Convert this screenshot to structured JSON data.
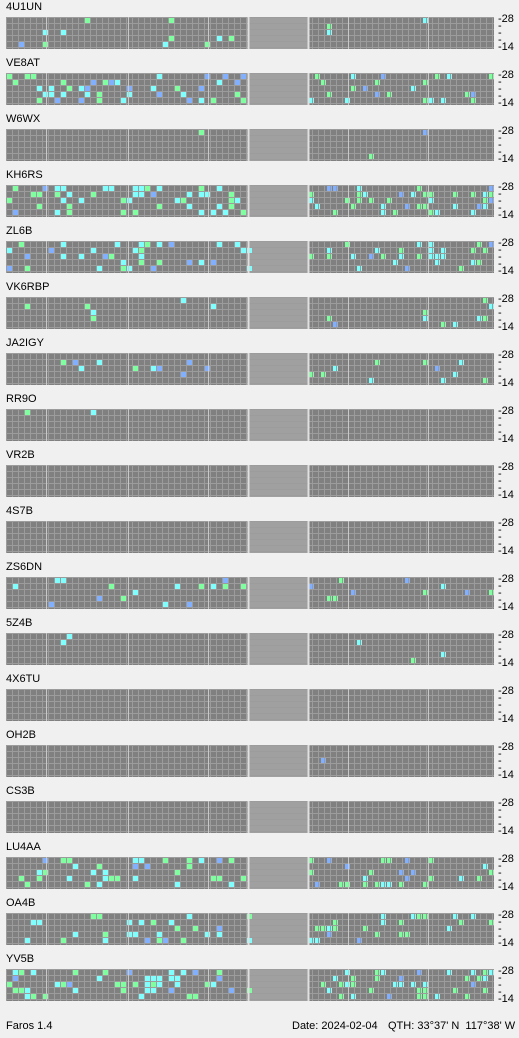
{
  "band_labels": {
    "top": "28",
    "bottom": "14"
  },
  "beacons": [
    {
      "callsign": "4U1UN"
    },
    {
      "callsign": "VE8AT"
    },
    {
      "callsign": "W6WX"
    },
    {
      "callsign": "KH6RS"
    },
    {
      "callsign": "ZL6B"
    },
    {
      "callsign": "VK6RBP"
    },
    {
      "callsign": "JA2IGY"
    },
    {
      "callsign": "RR9O"
    },
    {
      "callsign": "VR2B"
    },
    {
      "callsign": "4S7B"
    },
    {
      "callsign": "ZS6DN"
    },
    {
      "callsign": "5Z4B"
    },
    {
      "callsign": "4X6TU"
    },
    {
      "callsign": "OH2B"
    },
    {
      "callsign": "CS3B"
    },
    {
      "callsign": "LU4AA"
    },
    {
      "callsign": "OA4B"
    },
    {
      "callsign": "YV5B"
    }
  ],
  "status": {
    "app_name": "Faros 1.4",
    "date": "Date: 2024-02-04",
    "qth": "QTH: 33°37' N  117°38' W"
  },
  "colors": {
    "background": "#f0f0f0",
    "cell_empty": "#808080",
    "cell_line": "#9c9c9c",
    "separator": "#c8c8c8",
    "blank_panel": "#a0a0a0",
    "signal_green": "#80ffa0",
    "signal_cyan": "#80ffff",
    "signal_blue": "#80b0ff",
    "signal_violet": "#8080ff",
    "signal_gray": "#a8a8a8"
  }
}
